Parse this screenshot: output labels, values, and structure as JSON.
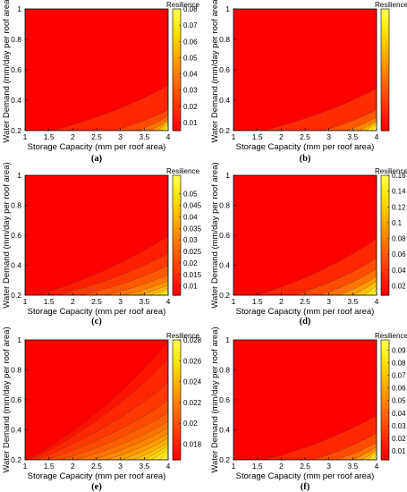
{
  "figure": {
    "xlabel": "Storage Capacity (mm per roof area)",
    "ylabel": "Water Demand (mm/day per roof area)",
    "colorbar_title": "Resilience"
  },
  "chart_data": [
    {
      "type": "heatmap",
      "panel_label": "(a)",
      "xlabel": "Storage Capacity (mm per roof area)",
      "ylabel": "Water Demand (mm/day per roof area)",
      "xlim": [
        1,
        4
      ],
      "ylim": [
        0.2,
        1
      ],
      "xticks": [
        "1",
        "1.5",
        "2",
        "2.5",
        "3",
        "3.5",
        "4"
      ],
      "yticks": [
        "0.2",
        "0.4",
        "0.6",
        "0.8",
        "1"
      ],
      "colorbar": {
        "title": "Resilience",
        "range": [
          0.005,
          0.08
        ],
        "ticks": [
          "0.01",
          "0.02",
          "0.03",
          "0.04",
          "0.05",
          "0.06",
          "0.07",
          "0.08"
        ]
      },
      "front_y_at_max_storage": [
        0.5,
        0.34,
        0.3,
        0.28,
        0.27,
        0.26,
        0.25
      ],
      "front_x_at_min_demand": [
        1.5,
        2.8,
        3.3,
        3.6,
        3.75,
        3.85,
        3.92
      ]
    },
    {
      "type": "heatmap",
      "panel_label": "(b)",
      "xlabel": "Storage Capacity (mm per roof area)",
      "ylabel": "Water Demand (mm/day per roof area)",
      "xlim": [
        1,
        4
      ],
      "ylim": [
        0.2,
        1
      ],
      "xticks": [
        "1",
        "1.5",
        "2",
        "2.5",
        "3",
        "3.5",
        "4"
      ],
      "yticks": [
        "0.2",
        "0.4",
        "0.6",
        "0.8",
        "1"
      ],
      "colorbar": {
        "title": "Resilience",
        "range": [
          0.002,
          0.1
        ],
        "ticks": []
      },
      "front_y_at_max_storage": [
        0.48,
        0.34,
        0.29,
        0.27,
        0.26,
        0.25
      ],
      "front_x_at_min_demand": [
        1.55,
        2.8,
        3.3,
        3.6,
        3.75,
        3.88
      ]
    },
    {
      "type": "heatmap",
      "panel_label": "(c)",
      "xlabel": "Storage Capacity (mm per roof area)",
      "ylabel": "Water Demand (mm/day per roof area)",
      "xlim": [
        1,
        4
      ],
      "ylim": [
        0.2,
        1
      ],
      "xticks": [
        "1",
        "1.5",
        "2",
        "2.5",
        "3",
        "3.5",
        "4"
      ],
      "yticks": [
        "0.2",
        "0.4",
        "0.6",
        "0.8",
        "1"
      ],
      "colorbar": {
        "title": "Resilience",
        "range": [
          0.006,
          0.058
        ],
        "ticks": [
          "0.01",
          "0.015",
          "0.02",
          "0.025",
          "0.03",
          "0.035",
          "0.04",
          "0.045",
          "0.05"
        ]
      },
      "front_y_at_max_storage": [
        0.6,
        0.48,
        0.4,
        0.34,
        0.3,
        0.27,
        0.25,
        0.24,
        0.23
      ],
      "front_x_at_min_demand": [
        1.2,
        1.6,
        2.1,
        2.6,
        3.0,
        3.3,
        3.55,
        3.75,
        3.9
      ]
    },
    {
      "type": "heatmap",
      "panel_label": "(d)",
      "xlabel": "Storage Capacity (mm per roof area)",
      "ylabel": "Water Demand (mm/day per roof area)",
      "xlim": [
        1,
        4
      ],
      "ylim": [
        0.2,
        1
      ],
      "xticks": [
        "1",
        "1.5",
        "2",
        "2.5",
        "3",
        "3.5",
        "4"
      ],
      "yticks": [
        "0.2",
        "0.4",
        "0.6",
        "0.8",
        "1"
      ],
      "colorbar": {
        "title": "Resilience",
        "range": [
          0.008,
          0.16
        ],
        "ticks": [
          "0.02",
          "0.04",
          "0.06",
          "0.08",
          "0.1",
          "0.12",
          "0.14",
          "0.16"
        ]
      },
      "front_y_at_max_storage": [
        0.58,
        0.45,
        0.38,
        0.33,
        0.3,
        0.27,
        0.25
      ],
      "front_x_at_min_demand": [
        1.45,
        2.2,
        2.75,
        3.15,
        3.45,
        3.7,
        3.88
      ]
    },
    {
      "type": "heatmap",
      "panel_label": "(e)",
      "xlabel": "Storage Capacity (mm per roof area)",
      "ylabel": "Water Demand (mm/day per roof area)",
      "xlim": [
        1,
        4
      ],
      "ylim": [
        0.2,
        1
      ],
      "xticks": [
        "1",
        "1.5",
        "2",
        "2.5",
        "3",
        "3.5",
        "4"
      ],
      "yticks": [
        "0.2",
        "0.4",
        "0.6",
        "0.8",
        "1"
      ],
      "colorbar": {
        "title": "Resilience",
        "range": [
          0.0165,
          0.028
        ],
        "ticks": [
          "0.018",
          "0.02",
          "0.022",
          "0.024",
          "0.026",
          "0.028"
        ]
      },
      "front_y_at_max_storage": [
        1.0,
        0.88,
        0.72,
        0.6,
        0.52,
        0.46,
        0.42,
        0.38,
        0.35,
        0.32,
        0.3,
        0.28,
        0.26,
        0.24
      ],
      "front_x_at_min_demand": [
        1.02,
        1.08,
        1.2,
        1.4,
        1.7,
        2.0,
        2.35,
        2.65,
        2.95,
        3.2,
        3.42,
        3.6,
        3.78,
        3.9
      ]
    },
    {
      "type": "heatmap",
      "panel_label": "(f)",
      "xlabel": "Storage Capacity (mm per roof area)",
      "ylabel": "Water Demand (mm/day per roof area)",
      "xlim": [
        1,
        4
      ],
      "ylim": [
        0.2,
        1
      ],
      "xticks": [
        "1",
        "1.5",
        "2",
        "2.5",
        "3",
        "3.5",
        "4"
      ],
      "yticks": [
        "0.2",
        "0.4",
        "0.6",
        "0.8",
        "1"
      ],
      "colorbar": {
        "title": "Resilience",
        "range": [
          0.003,
          0.098
        ],
        "ticks": [
          "0.01",
          "0.02",
          "0.03",
          "0.04",
          "0.05",
          "0.06",
          "0.07",
          "0.08",
          "0.09"
        ]
      },
      "front_y_at_max_storage": [
        0.5,
        0.38,
        0.32,
        0.29,
        0.27,
        0.26,
        0.25
      ],
      "front_x_at_min_demand": [
        1.6,
        2.6,
        3.1,
        3.45,
        3.65,
        3.8,
        3.92
      ]
    }
  ]
}
